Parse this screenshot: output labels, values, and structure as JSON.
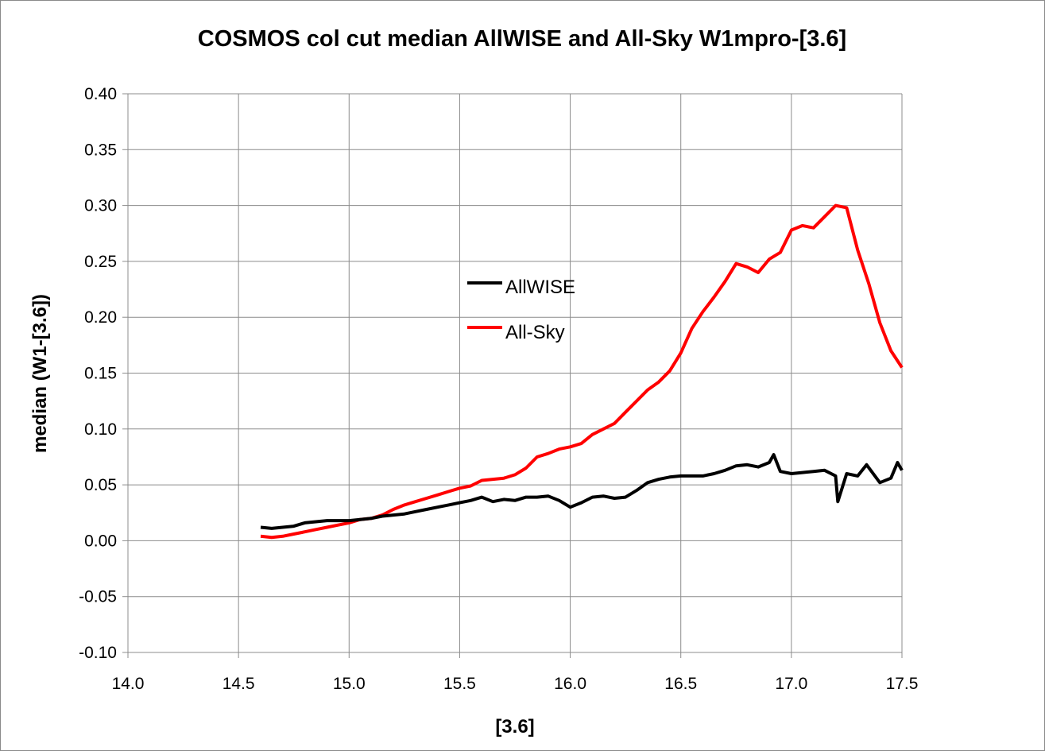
{
  "chart_data": {
    "type": "line",
    "title": "COSMOS col cut median AllWISE and All-Sky W1mpro-[3.6]",
    "xlabel": "[3.6]",
    "ylabel": "median (W1-[3.6])",
    "xlim": [
      14.0,
      17.5
    ],
    "ylim": [
      -0.1,
      0.4
    ],
    "x_ticks": [
      "14.0",
      "14.5",
      "15.0",
      "15.5",
      "16.0",
      "16.5",
      "17.0",
      "17.5"
    ],
    "y_ticks": [
      "-0.10",
      "-0.05",
      "0.00",
      "0.05",
      "0.10",
      "0.15",
      "0.20",
      "0.25",
      "0.30",
      "0.35",
      "0.40"
    ],
    "grid": true,
    "legend_position": "center",
    "series": [
      {
        "name": "AllWISE",
        "color": "#000000",
        "x": [
          14.6,
          14.65,
          14.7,
          14.75,
          14.8,
          14.85,
          14.9,
          14.95,
          15.0,
          15.05,
          15.1,
          15.15,
          15.2,
          15.25,
          15.3,
          15.35,
          15.4,
          15.45,
          15.5,
          15.55,
          15.6,
          15.65,
          15.7,
          15.75,
          15.8,
          15.85,
          15.9,
          15.95,
          16.0,
          16.05,
          16.1,
          16.15,
          16.2,
          16.25,
          16.3,
          16.35,
          16.4,
          16.45,
          16.5,
          16.55,
          16.6,
          16.65,
          16.7,
          16.75,
          16.8,
          16.85,
          16.9,
          16.92,
          16.95,
          17.0,
          17.05,
          17.1,
          17.15,
          17.2,
          17.21,
          17.25,
          17.3,
          17.34,
          17.4,
          17.45,
          17.48,
          17.5
        ],
        "values": [
          0.012,
          0.011,
          0.012,
          0.013,
          0.016,
          0.017,
          0.018,
          0.018,
          0.018,
          0.019,
          0.02,
          0.022,
          0.023,
          0.024,
          0.026,
          0.028,
          0.03,
          0.032,
          0.034,
          0.036,
          0.039,
          0.035,
          0.037,
          0.036,
          0.039,
          0.039,
          0.04,
          0.036,
          0.03,
          0.034,
          0.039,
          0.04,
          0.038,
          0.039,
          0.045,
          0.052,
          0.055,
          0.057,
          0.058,
          0.058,
          0.058,
          0.06,
          0.063,
          0.067,
          0.068,
          0.066,
          0.07,
          0.077,
          0.062,
          0.06,
          0.061,
          0.062,
          0.063,
          0.058,
          0.035,
          0.06,
          0.058,
          0.068,
          0.052,
          0.056,
          0.07,
          0.063
        ]
      },
      {
        "name": "All-Sky",
        "color": "#ff0000",
        "x": [
          14.6,
          14.65,
          14.7,
          14.75,
          14.8,
          14.85,
          14.9,
          14.95,
          15.0,
          15.05,
          15.1,
          15.15,
          15.2,
          15.25,
          15.3,
          15.35,
          15.4,
          15.45,
          15.5,
          15.55,
          15.6,
          15.65,
          15.7,
          15.75,
          15.8,
          15.85,
          15.9,
          15.95,
          16.0,
          16.05,
          16.1,
          16.15,
          16.2,
          16.25,
          16.3,
          16.35,
          16.4,
          16.45,
          16.5,
          16.55,
          16.6,
          16.65,
          16.7,
          16.75,
          16.8,
          16.85,
          16.9,
          16.95,
          17.0,
          17.05,
          17.1,
          17.15,
          17.2,
          17.25,
          17.3,
          17.35,
          17.4,
          17.45,
          17.5
        ],
        "values": [
          0.004,
          0.003,
          0.004,
          0.006,
          0.008,
          0.01,
          0.012,
          0.014,
          0.016,
          0.019,
          0.02,
          0.023,
          0.028,
          0.032,
          0.035,
          0.038,
          0.041,
          0.044,
          0.047,
          0.049,
          0.054,
          0.055,
          0.056,
          0.059,
          0.065,
          0.075,
          0.078,
          0.082,
          0.084,
          0.087,
          0.095,
          0.1,
          0.105,
          0.115,
          0.125,
          0.135,
          0.142,
          0.152,
          0.168,
          0.19,
          0.205,
          0.218,
          0.232,
          0.248,
          0.245,
          0.24,
          0.252,
          0.258,
          0.278,
          0.282,
          0.28,
          0.29,
          0.3,
          0.298,
          0.26,
          0.23,
          0.195,
          0.17,
          0.155
        ]
      }
    ]
  }
}
